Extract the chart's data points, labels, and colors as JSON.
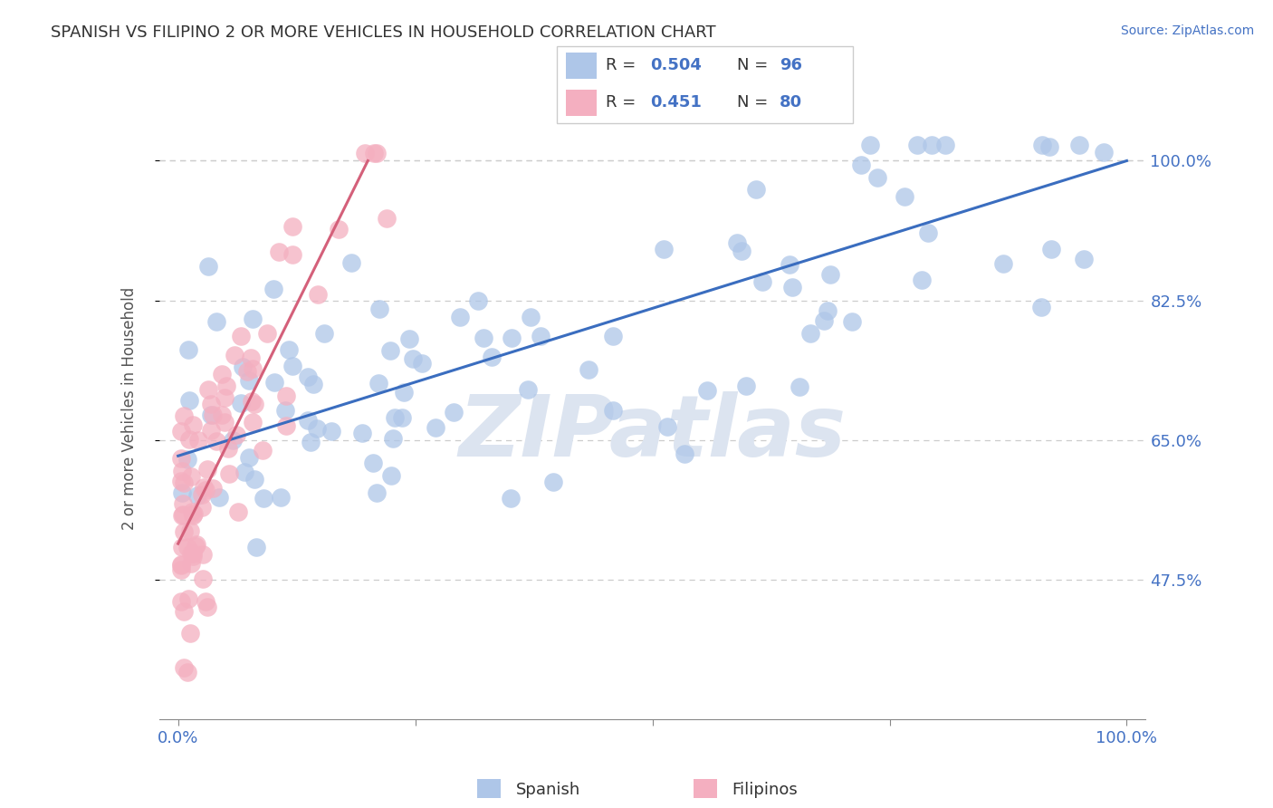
{
  "title": "SPANISH VS FILIPINO 2 OR MORE VEHICLES IN HOUSEHOLD CORRELATION CHART",
  "source": "Source: ZipAtlas.com",
  "ylabel": "2 or more Vehicles in Household",
  "xlim": [
    -2,
    102
  ],
  "ylim": [
    30,
    108
  ],
  "ytick_values": [
    47.5,
    65.0,
    82.5,
    100.0
  ],
  "ytick_labels": [
    "47.5%",
    "65.0%",
    "82.5%",
    "100.0%"
  ],
  "xtick_values": [
    0,
    100
  ],
  "xtick_labels": [
    "0.0%",
    "100.0%"
  ],
  "legend_r_spanish": "0.504",
  "legend_n_spanish": "96",
  "legend_r_filipino": "0.451",
  "legend_n_filipino": "80",
  "spanish_color": "#aec6e8",
  "filipino_color": "#f4afc0",
  "spanish_line_color": "#3a6dbf",
  "filipino_line_color": "#d4607a",
  "watermark_color": "#dce4f0",
  "tick_color": "#4472c4",
  "label_color": "#555555",
  "grid_color": "#cccccc",
  "title_color": "#333333",
  "source_color": "#4472c4",
  "legend_border_color": "#cccccc",
  "spanish_line_x": [
    0,
    100
  ],
  "spanish_line_y": [
    63.0,
    100.0
  ],
  "filipino_line_x": [
    0,
    20
  ],
  "filipino_line_y": [
    52.0,
    100.0
  ]
}
